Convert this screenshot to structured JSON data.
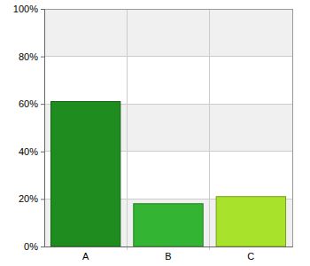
{
  "chart_data": {
    "type": "bar",
    "categories": [
      "A",
      "B",
      "C"
    ],
    "values": [
      61,
      18,
      21
    ],
    "colors": [
      "#1e8c1e",
      "#33b533",
      "#a8e22a"
    ],
    "ylim": [
      0,
      100
    ],
    "yticks": [
      {
        "value": 0,
        "label": "0%"
      },
      {
        "value": 20,
        "label": "20%"
      },
      {
        "value": 40,
        "label": "40%"
      },
      {
        "value": 60,
        "label": "60%"
      },
      {
        "value": 80,
        "label": "80%"
      },
      {
        "value": 100,
        "label": "100%"
      }
    ],
    "grid": true
  }
}
